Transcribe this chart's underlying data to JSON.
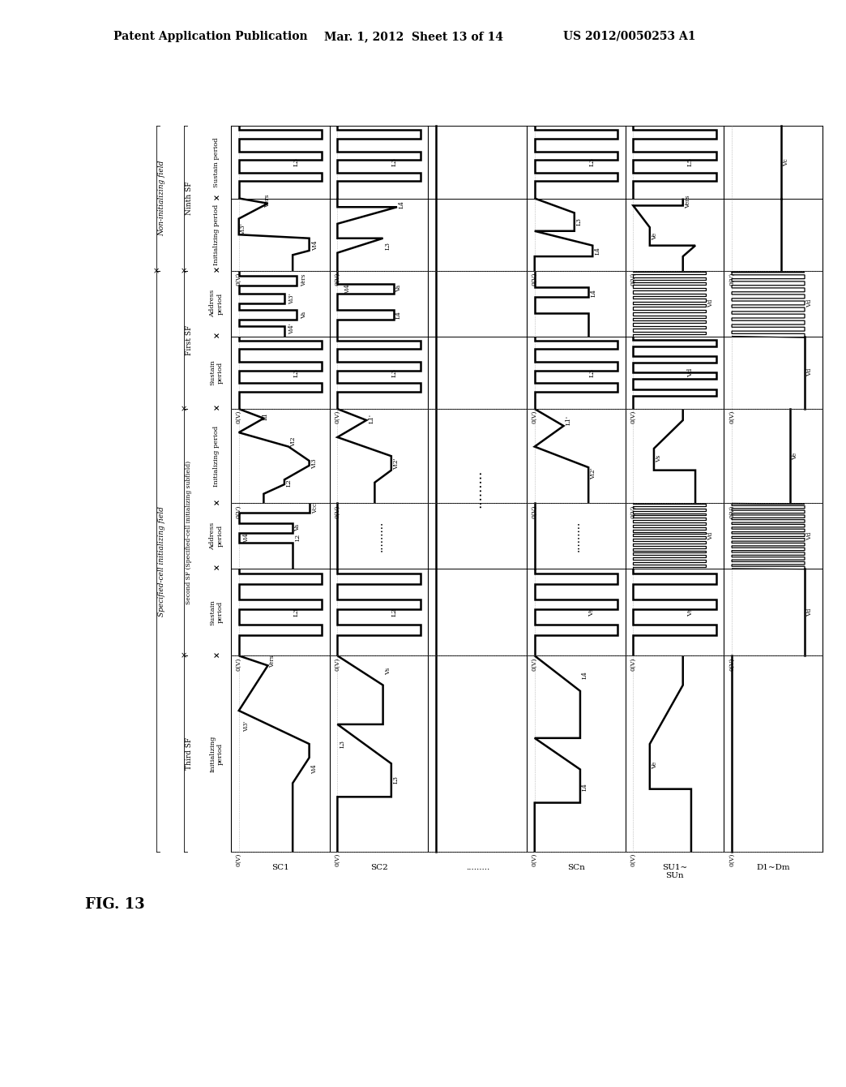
{
  "header_left": "Patent Application Publication",
  "header_mid": "Mar. 1, 2012  Sheet 13 of 14",
  "header_right": "US 2012/0050253 A1",
  "fig_label": "FIG. 13",
  "background_color": "#ffffff"
}
